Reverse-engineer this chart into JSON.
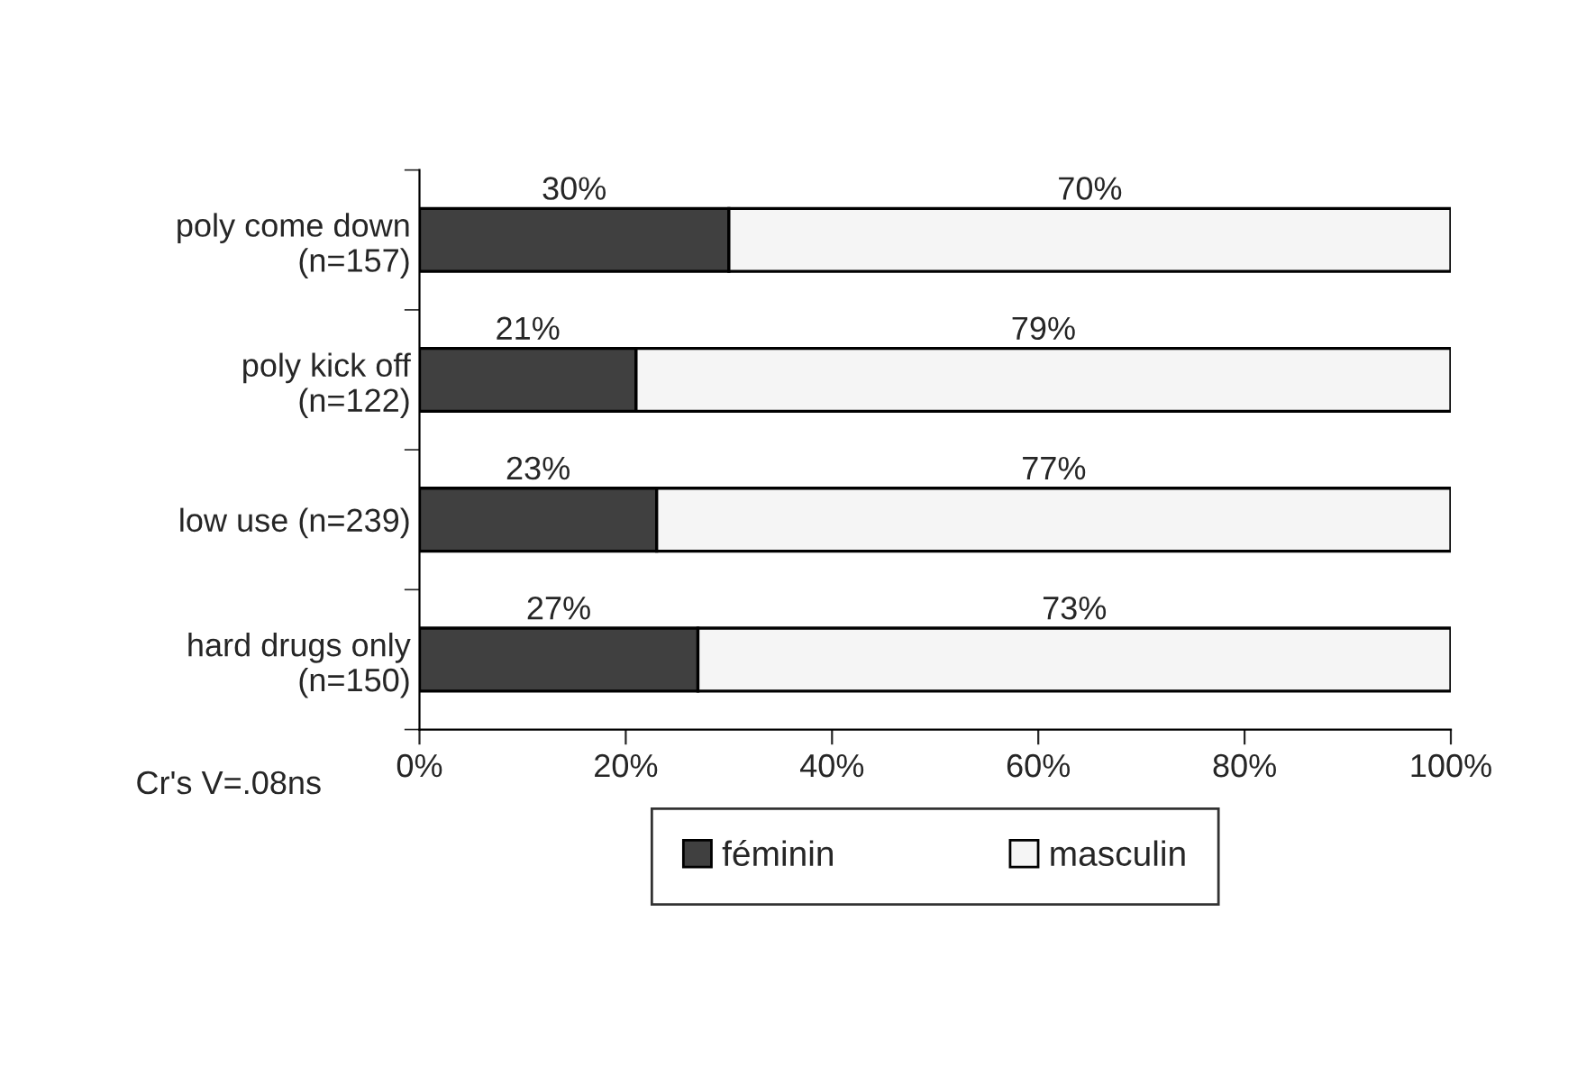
{
  "chart_data": {
    "type": "bar",
    "orientation": "horizontal",
    "stacked": true,
    "categories": [
      "poly come down\n(n=157)",
      "poly kick off\n(n=122)",
      "low use (n=239)",
      "hard drugs only\n(n=150)"
    ],
    "series": [
      {
        "name": "féminin",
        "color": "#404040",
        "values": [
          30,
          21,
          23,
          27
        ],
        "value_labels": [
          "30%",
          "21%",
          "23%",
          "27%"
        ]
      },
      {
        "name": "masculin",
        "color": "#f5f5f5",
        "values": [
          70,
          79,
          77,
          73
        ],
        "value_labels": [
          "70%",
          "79%",
          "77%",
          "73%"
        ]
      }
    ],
    "xlim": [
      0,
      100
    ],
    "xticks": [
      {
        "value": 0,
        "label": "0%"
      },
      {
        "value": 20,
        "label": "20%"
      },
      {
        "value": 40,
        "label": "40%"
      },
      {
        "value": 60,
        "label": "60%"
      },
      {
        "value": 80,
        "label": "80%"
      },
      {
        "value": 100,
        "label": "100%"
      }
    ],
    "grid": false,
    "legend": "bottom",
    "annotations": [
      "Cr's V=.08ns"
    ]
  }
}
